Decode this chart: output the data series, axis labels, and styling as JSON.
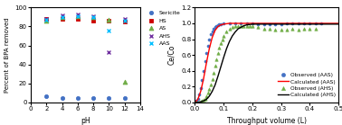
{
  "left": {
    "xlabel": "pH",
    "ylabel": "Percent of BPA removed",
    "xlim": [
      0,
      14
    ],
    "ylim": [
      0,
      100
    ],
    "xticks": [
      0,
      2,
      4,
      6,
      8,
      10,
      12,
      14
    ],
    "yticks": [
      0,
      20,
      40,
      60,
      80,
      100
    ],
    "series": {
      "Sericite": {
        "color": "#4472C4",
        "marker": "o",
        "x": [
          2,
          4,
          6,
          8,
          10,
          12
        ],
        "y": [
          7,
          5,
          5,
          5,
          5,
          5
        ]
      },
      "HS": {
        "color": "#CC0000",
        "marker": "s",
        "x": [
          2,
          4,
          6,
          8,
          10,
          12
        ],
        "y": [
          88,
          88,
          88,
          86,
          86,
          85
        ]
      },
      "AS": {
        "color": "#70AD47",
        "marker": "^",
        "x": [
          2,
          4,
          6,
          8,
          10,
          12
        ],
        "y": [
          86,
          90,
          91,
          90,
          87,
          22
        ]
      },
      "AHS": {
        "color": "#7030A0",
        "marker": "x",
        "x": [
          2,
          4,
          6,
          8,
          10,
          12
        ],
        "y": [
          88,
          92,
          93,
          91,
          53,
          88
        ]
      },
      "AAS": {
        "color": "#00BFFF",
        "marker": "x",
        "x": [
          2,
          4,
          6,
          8,
          10,
          12
        ],
        "y": [
          87,
          90,
          91,
          90,
          76,
          86
        ]
      }
    }
  },
  "right": {
    "xlabel": "Throughput volume (L)",
    "ylabel": "Ce/Co",
    "xlim": [
      0,
      0.5
    ],
    "ylim": [
      0.0,
      1.2
    ],
    "xticks": [
      0.0,
      0.1,
      0.2,
      0.3,
      0.4,
      0.5
    ],
    "yticks": [
      0.0,
      0.2,
      0.4,
      0.6,
      0.8,
      1.0,
      1.2
    ],
    "obs_aas_x": [
      0.005,
      0.01,
      0.015,
      0.02,
      0.025,
      0.03,
      0.035,
      0.04,
      0.045,
      0.05,
      0.055,
      0.06,
      0.065,
      0.07,
      0.075,
      0.08,
      0.085,
      0.09,
      0.1,
      0.12,
      0.14,
      0.16,
      0.18,
      0.2,
      0.22,
      0.24,
      0.26,
      0.28,
      0.3,
      0.32,
      0.34,
      0.36,
      0.38,
      0.4,
      0.42,
      0.44
    ],
    "obs_aas_y": [
      0.02,
      0.05,
      0.1,
      0.18,
      0.28,
      0.4,
      0.52,
      0.63,
      0.72,
      0.8,
      0.86,
      0.9,
      0.93,
      0.95,
      0.97,
      0.98,
      0.99,
      0.99,
      1.0,
      1.0,
      1.0,
      1.0,
      1.0,
      1.0,
      0.99,
      0.99,
      0.99,
      0.99,
      0.99,
      1.0,
      1.0,
      1.0,
      1.0,
      1.0,
      1.0,
      1.0
    ],
    "calc_aas_x": [
      0.0,
      0.01,
      0.02,
      0.03,
      0.04,
      0.05,
      0.06,
      0.07,
      0.08,
      0.09,
      0.1,
      0.12,
      0.14,
      0.2,
      0.3,
      0.4,
      0.5
    ],
    "calc_aas_y": [
      0.0,
      0.04,
      0.14,
      0.3,
      0.5,
      0.68,
      0.82,
      0.91,
      0.96,
      0.98,
      0.99,
      1.0,
      1.0,
      1.0,
      1.0,
      1.0,
      1.0
    ],
    "obs_ahs_x": [
      0.005,
      0.01,
      0.015,
      0.02,
      0.025,
      0.03,
      0.035,
      0.04,
      0.045,
      0.05,
      0.055,
      0.06,
      0.065,
      0.07,
      0.075,
      0.08,
      0.085,
      0.09,
      0.095,
      0.1,
      0.11,
      0.12,
      0.13,
      0.14,
      0.15,
      0.16,
      0.17,
      0.18,
      0.19,
      0.2,
      0.22,
      0.24,
      0.26,
      0.28,
      0.3,
      0.32,
      0.34,
      0.36,
      0.38,
      0.4,
      0.42
    ],
    "obs_ahs_y": [
      0.0,
      0.0,
      0.0,
      0.01,
      0.02,
      0.03,
      0.05,
      0.08,
      0.12,
      0.17,
      0.23,
      0.3,
      0.38,
      0.46,
      0.54,
      0.62,
      0.69,
      0.75,
      0.8,
      0.84,
      0.9,
      0.93,
      0.95,
      0.96,
      0.97,
      0.97,
      0.97,
      0.97,
      0.97,
      0.97,
      0.95,
      0.93,
      0.93,
      0.92,
      0.92,
      0.92,
      0.93,
      0.92,
      0.93,
      0.93,
      0.93
    ],
    "calc_ahs_x": [
      0.0,
      0.01,
      0.02,
      0.03,
      0.04,
      0.05,
      0.06,
      0.07,
      0.08,
      0.09,
      0.1,
      0.11,
      0.12,
      0.13,
      0.14,
      0.15,
      0.16,
      0.17,
      0.18,
      0.2,
      0.25,
      0.3,
      0.4,
      0.5
    ],
    "calc_ahs_y": [
      0.0,
      0.0,
      0.01,
      0.02,
      0.04,
      0.08,
      0.14,
      0.22,
      0.33,
      0.45,
      0.57,
      0.68,
      0.77,
      0.84,
      0.89,
      0.93,
      0.95,
      0.97,
      0.98,
      0.99,
      0.99,
      0.99,
      0.99,
      0.99
    ],
    "obs_aas_color": "#4472C4",
    "calc_aas_color": "#FF0000",
    "obs_ahs_color": "#70AD47",
    "calc_ahs_color": "#000000"
  }
}
